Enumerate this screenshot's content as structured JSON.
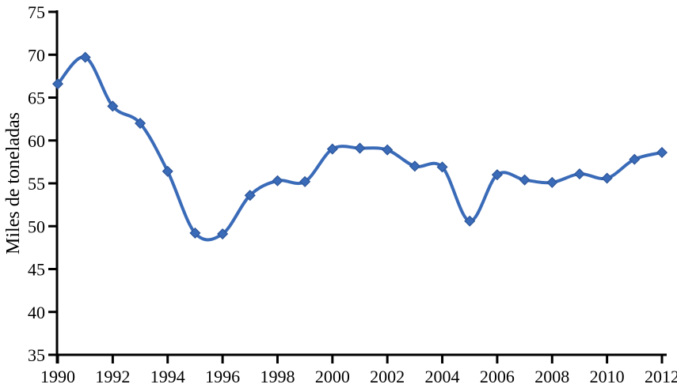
{
  "chart_data": {
    "type": "line",
    "title": "",
    "xlabel": "",
    "ylabel": "Miles de toneladas",
    "x": [
      1990,
      1991,
      1992,
      1993,
      1994,
      1995,
      1996,
      1997,
      1998,
      1999,
      2000,
      2001,
      2002,
      2003,
      2004,
      2005,
      2006,
      2007,
      2008,
      2009,
      2010,
      2011,
      2012
    ],
    "series": [
      {
        "name": "Miles de toneladas",
        "values": [
          66.6,
          69.7,
          64.0,
          62.0,
          56.4,
          49.2,
          49.1,
          53.6,
          55.3,
          55.2,
          59.0,
          59.1,
          58.9,
          57.0,
          56.9,
          50.6,
          56.0,
          55.4,
          55.1,
          56.1,
          55.6,
          57.8,
          58.6
        ],
        "line_color": "#3a6bb8",
        "marker": "diamond",
        "marker_fill": "#3a6bb8",
        "marker_edge": "#2d5699",
        "smooth": true
      }
    ],
    "xticks": [
      1990,
      1992,
      1994,
      1996,
      1998,
      2000,
      2002,
      2004,
      2006,
      2008,
      2010,
      2012
    ],
    "yticks": [
      35,
      40,
      45,
      50,
      55,
      60,
      65,
      70,
      75
    ],
    "xlim": [
      1990,
      2012
    ],
    "ylim": [
      35,
      75
    ],
    "grid": false,
    "legend": null,
    "axis_color": "#000000",
    "text_color": "#000000",
    "background": "#ffffff"
  }
}
